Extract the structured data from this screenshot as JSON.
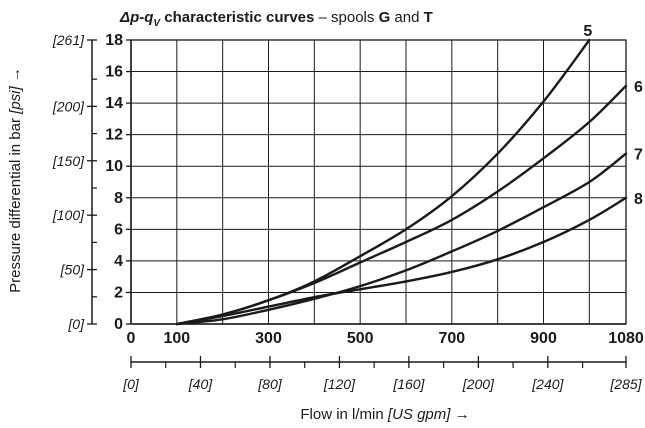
{
  "chart_data": {
    "type": "line",
    "title": {
      "dp": "Δp-q",
      "sub": "V",
      "rest": " characteristic curves",
      "sep": " – spools ",
      "spool1": "G",
      "and": " and ",
      "spool2": "T"
    },
    "xlabel": "Flow in l/min",
    "xlabel_alt": "[US gpm]",
    "xlabel_arrow": "→",
    "ylabel": "Pressure differential in bar",
    "ylabel_alt": "[psi]",
    "ylabel_arrow": "→",
    "xlim": [
      0,
      1080
    ],
    "ylim": [
      0,
      18
    ],
    "x_ticks": [
      0,
      100,
      300,
      500,
      700,
      900,
      1080
    ],
    "x_tick_labels": [
      "0",
      "100",
      "300",
      "500",
      "700",
      "900",
      "1080"
    ],
    "x_minor_ticks": [
      200,
      400,
      600,
      800,
      1000
    ],
    "y_ticks": [
      0,
      2,
      4,
      6,
      8,
      10,
      12,
      14,
      16,
      18
    ],
    "y_tick_labels": [
      "0",
      "2",
      "4",
      "6",
      "8",
      "10",
      "12",
      "14",
      "16",
      "18"
    ],
    "x_alt_ticks": [
      {
        "value": 0,
        "label": "[0]"
      },
      {
        "value": 40,
        "label": "[40]"
      },
      {
        "value": 80,
        "label": "[80]"
      },
      {
        "value": 120,
        "label": "[120]"
      },
      {
        "value": 160,
        "label": "[160]"
      },
      {
        "value": 200,
        "label": "[200]"
      },
      {
        "value": 240,
        "label": "[240]"
      },
      {
        "value": 285,
        "label": "[285]"
      }
    ],
    "x_alt_minor": [
      20,
      60,
      100,
      140,
      180,
      220,
      260
    ],
    "y_alt_ticks": [
      {
        "value": 0,
        "label": "[0]"
      },
      {
        "value": 50,
        "label": "[50]"
      },
      {
        "value": 100,
        "label": "[100]"
      },
      {
        "value": 150,
        "label": "[150]"
      },
      {
        "value": 200,
        "label": "[200]"
      },
      {
        "value": 261,
        "label": "[261]"
      }
    ],
    "y_alt_minor": [
      25,
      75,
      125,
      175,
      225
    ],
    "grid": true,
    "series": [
      {
        "name": "5",
        "x": [
          100,
          200,
          300,
          400,
          500,
          600,
          700,
          800,
          900,
          1000
        ],
        "y": [
          0,
          0.6,
          1.5,
          2.7,
          4.3,
          6.0,
          8.1,
          10.8,
          14.1,
          18.0
        ]
      },
      {
        "name": "6",
        "x": [
          100,
          200,
          300,
          400,
          500,
          600,
          700,
          800,
          900,
          1000,
          1080
        ],
        "y": [
          0,
          0.6,
          1.5,
          2.6,
          3.9,
          5.2,
          6.6,
          8.4,
          10.5,
          12.8,
          15.1
        ]
      },
      {
        "name": "7",
        "x": [
          100,
          200,
          300,
          400,
          500,
          600,
          700,
          800,
          900,
          1000,
          1080
        ],
        "y": [
          0,
          0.3,
          0.9,
          1.6,
          2.4,
          3.4,
          4.6,
          5.9,
          7.4,
          9.0,
          10.8
        ]
      },
      {
        "name": "8",
        "x": [
          100,
          200,
          300,
          400,
          500,
          600,
          700,
          800,
          900,
          1000,
          1080
        ],
        "y": [
          0,
          0.5,
          1.1,
          1.7,
          2.2,
          2.7,
          3.3,
          4.1,
          5.2,
          6.6,
          8.0
        ]
      }
    ]
  }
}
